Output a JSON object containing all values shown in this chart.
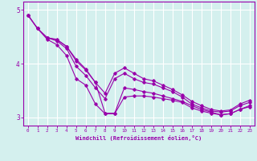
{
  "title": "",
  "xlabel": "Windchill (Refroidissement éolien,°C)",
  "ylabel": "",
  "background_color": "#d4f0ee",
  "line_color": "#9900aa",
  "grid_color": "#ffffff",
  "axis_color": "#9900aa",
  "tick_color": "#9900aa",
  "xlim": [
    -0.5,
    23.5
  ],
  "ylim": [
    2.85,
    5.15
  ],
  "yticks": [
    3,
    4,
    5
  ],
  "xticks": [
    0,
    1,
    2,
    3,
    4,
    5,
    6,
    7,
    8,
    9,
    10,
    11,
    12,
    13,
    14,
    15,
    16,
    17,
    18,
    19,
    20,
    21,
    22,
    23
  ],
  "series": [
    {
      "x": [
        0,
        1,
        2,
        3,
        4,
        5,
        6,
        7,
        8,
        9,
        10,
        11,
        12,
        13,
        14,
        15,
        16,
        17,
        18,
        19,
        20,
        21,
        22,
        23
      ],
      "y": [
        4.9,
        4.65,
        4.45,
        4.35,
        4.15,
        3.72,
        3.6,
        3.25,
        3.07,
        3.07,
        3.38,
        3.4,
        3.4,
        3.38,
        3.35,
        3.32,
        3.28,
        3.18,
        3.12,
        3.08,
        3.05,
        3.07,
        3.15,
        3.2
      ]
    },
    {
      "x": [
        0,
        1,
        2,
        3,
        4,
        5,
        6,
        7,
        8,
        9,
        10,
        11,
        12,
        13,
        14,
        15,
        16,
        17,
        18,
        19,
        20,
        21,
        22,
        23
      ],
      "y": [
        4.9,
        4.65,
        4.48,
        4.42,
        4.28,
        3.95,
        3.78,
        3.55,
        3.35,
        3.72,
        3.82,
        3.72,
        3.65,
        3.62,
        3.55,
        3.48,
        3.38,
        3.25,
        3.18,
        3.12,
        3.1,
        3.12,
        3.22,
        3.28
      ]
    },
    {
      "x": [
        0,
        1,
        2,
        3,
        4,
        5,
        6,
        7,
        8,
        9,
        10,
        11,
        12,
        13,
        14,
        15,
        16,
        17,
        18,
        19,
        20,
        21,
        22,
        23
      ],
      "y": [
        4.9,
        4.65,
        4.48,
        4.44,
        4.32,
        4.05,
        3.88,
        3.65,
        3.45,
        3.82,
        3.92,
        3.82,
        3.72,
        3.68,
        3.6,
        3.52,
        3.42,
        3.3,
        3.22,
        3.15,
        3.12,
        3.14,
        3.25,
        3.32
      ]
    },
    {
      "x": [
        2,
        3,
        4,
        5,
        6,
        7,
        8,
        9,
        10,
        11,
        12,
        13,
        14,
        15,
        16,
        17,
        18,
        19,
        20,
        21,
        22,
        23
      ],
      "y": [
        4.48,
        4.45,
        4.32,
        4.08,
        3.9,
        3.65,
        3.08,
        3.08,
        3.55,
        3.52,
        3.48,
        3.45,
        3.4,
        3.35,
        3.3,
        3.22,
        3.15,
        3.1,
        3.05,
        3.07,
        3.15,
        3.22
      ]
    }
  ]
}
